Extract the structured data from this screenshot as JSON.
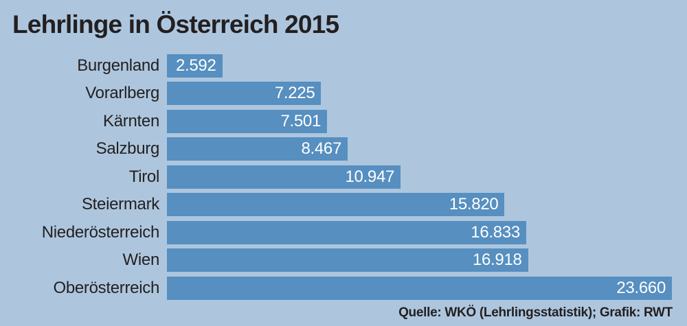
{
  "chart": {
    "title": "Lehrlinge in Österreich 2015",
    "source": "Quelle: WKÖ (Lehrlingsstatistik); Grafik: RWT",
    "colors": {
      "background": "#adc6de",
      "bar": "#568fc0",
      "text": "#231f20",
      "value_text": "#ffffff"
    }
  },
  "chart_data": {
    "type": "bar",
    "orientation": "horizontal",
    "title": "Lehrlinge in Österreich 2015",
    "categories": [
      "Burgenland",
      "Vorarlberg",
      "Kärnten",
      "Salzburg",
      "Tirol",
      "Steiermark",
      "Niederösterreich",
      "Wien",
      "Oberösterreich"
    ],
    "values": [
      2592,
      7225,
      7501,
      8467,
      10947,
      15820,
      16833,
      16918,
      23660
    ],
    "value_labels": [
      "2.592",
      "7.225",
      "7.501",
      "8.467",
      "10.947",
      "15.820",
      "16.833",
      "16.918",
      "23.660"
    ],
    "xlabel": "",
    "ylabel": "",
    "xlim": [
      0,
      23660
    ],
    "grid": false,
    "legend": false,
    "sort_order": "ascending",
    "source": "Quelle: WKÖ (Lehrlingsstatistik); Grafik: RWT"
  }
}
